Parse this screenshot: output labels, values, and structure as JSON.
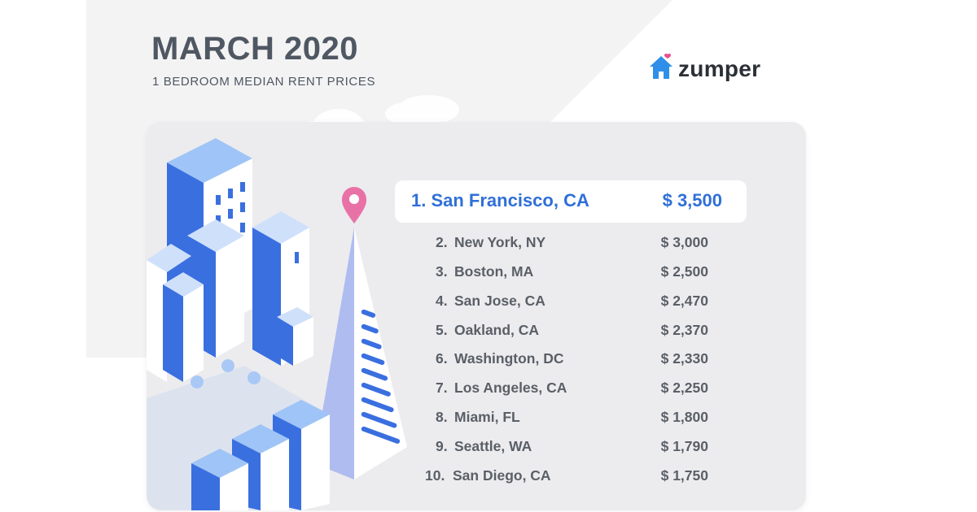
{
  "header": {
    "title": "MARCH 2020",
    "subtitle": "1 BEDROOM MEDIAN RENT PRICES"
  },
  "brand": {
    "name": "zumper",
    "accent": "#2f8fe8",
    "heart_color": "#e8508e"
  },
  "colors": {
    "highlight_text": "#2f6fd8",
    "list_text": "#5a5f67",
    "building_blue": "#3a6fe0",
    "pin": "#e872a6"
  },
  "rankings": [
    {
      "rank": "1.",
      "city": "San Francisco, CA",
      "price": "$ 3,500"
    },
    {
      "rank": "2.",
      "city": "New York, NY",
      "price": "$ 3,000"
    },
    {
      "rank": "3.",
      "city": "Boston, MA",
      "price": "$ 2,500"
    },
    {
      "rank": "4.",
      "city": "San Jose, CA",
      "price": "$ 2,470"
    },
    {
      "rank": "5.",
      "city": "Oakland, CA",
      "price": "$ 2,370"
    },
    {
      "rank": "6.",
      "city": "Washington, DC",
      "price": "$ 2,330"
    },
    {
      "rank": "7.",
      "city": "Los Angeles, CA",
      "price": "$ 2,250"
    },
    {
      "rank": "8.",
      "city": "Miami, FL",
      "price": "$ 1,800"
    },
    {
      "rank": "9.",
      "city": "Seattle, WA",
      "price": "$ 1,790"
    },
    {
      "rank": "10.",
      "city": "San Diego, CA",
      "price": "$ 1,750"
    }
  ],
  "top_label": "1. San Francisco, CA",
  "top_price": "$ 3,500"
}
